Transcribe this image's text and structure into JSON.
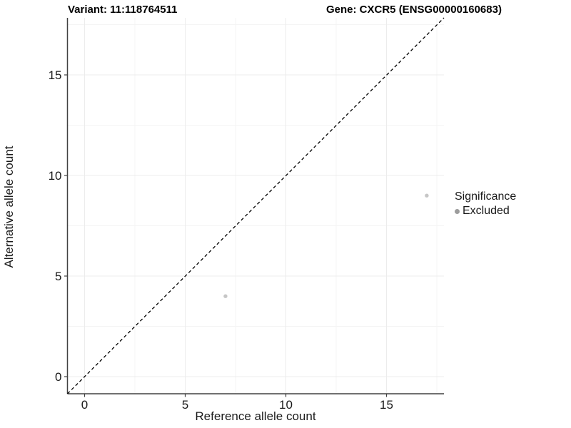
{
  "titles": {
    "left": "Variant: 11:118764511",
    "right": "Gene: CXCR5 (ENSG00000160683)"
  },
  "chart_data": {
    "type": "scatter",
    "title": "Variant: 11:118764511   Gene: CXCR5 (ENSG00000160683)",
    "xlabel": "Reference allele count",
    "ylabel": "Alternative allele count",
    "x_ticks": [
      0,
      5,
      10,
      15
    ],
    "y_ticks": [
      0,
      5,
      10,
      15
    ],
    "x_minor_ticks": [
      2.5,
      7.5,
      12.5,
      17.5
    ],
    "y_minor_ticks": [
      2.5,
      7.5,
      12.5,
      17.5
    ],
    "xlim": [
      -0.85,
      17.85
    ],
    "ylim": [
      -0.85,
      17.85
    ],
    "grid": true,
    "legend_position": "right",
    "identity_line": {
      "type": "dashed",
      "color": "#000000",
      "slope": 1,
      "intercept": 0
    },
    "series": [
      {
        "name": "Excluded",
        "point_color": "#c6c6c6",
        "points": [
          {
            "x": 7,
            "y": 4
          },
          {
            "x": 17,
            "y": 9
          }
        ]
      }
    ],
    "legend": {
      "title": "Significance",
      "items": [
        {
          "label": "Excluded",
          "color": "#9c9c9c"
        }
      ]
    }
  },
  "colors": {
    "background": "#ffffff",
    "grid_major": "#ececec",
    "grid_minor": "#f4f4f4",
    "axis_line": "#404040",
    "tick_text": "#1a1a1a",
    "point": "#c6c6c6",
    "legend_dot": "#9c9c9c",
    "identity_line": "#000000"
  }
}
